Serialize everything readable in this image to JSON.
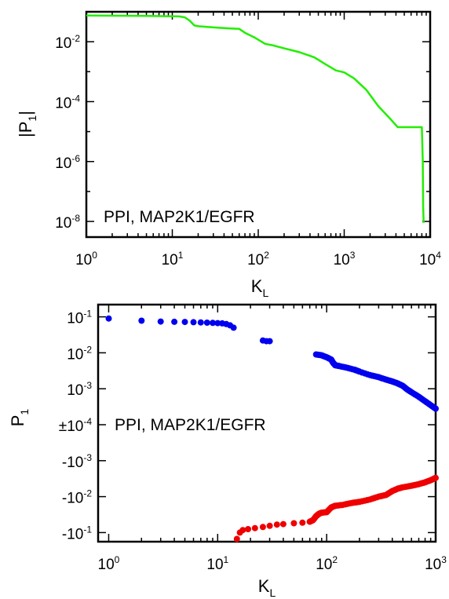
{
  "chart_data": [
    {
      "type": "line",
      "ylabel": "|P1|",
      "xlabel": "KL",
      "xscale": "log",
      "yscale": "log",
      "xlim": [
        1,
        10000
      ],
      "ylim": [
        3e-09,
        0.1
      ],
      "x_ticks": [
        {
          "base": "10",
          "exp": "0"
        },
        {
          "base": "10",
          "exp": "1"
        },
        {
          "base": "10",
          "exp": "2"
        },
        {
          "base": "10",
          "exp": "3"
        },
        {
          "base": "10",
          "exp": "4"
        }
      ],
      "y_ticks": [
        {
          "base": "10",
          "exp": "-2"
        },
        {
          "base": "10",
          "exp": "-4"
        },
        {
          "base": "10",
          "exp": "-6"
        },
        {
          "base": "10",
          "exp": "-8"
        }
      ],
      "annotation": "PPI, MAP2K1/EGFR",
      "grid": false,
      "series": [
        {
          "color": "#22ee00",
          "x": [
            1,
            5,
            12,
            14,
            16,
            18,
            20,
            30,
            45,
            60,
            70,
            90,
            120,
            150,
            200,
            300,
            450,
            600,
            800,
            1000,
            1300,
            1800,
            2500,
            3500,
            4200,
            5000,
            6000,
            7500,
            8000,
            8200,
            8300,
            8400
          ],
          "y": [
            0.075,
            0.073,
            0.07,
            0.065,
            0.05,
            0.035,
            0.033,
            0.03,
            0.028,
            0.027,
            0.02,
            0.014,
            0.0085,
            0.0075,
            0.006,
            0.0045,
            0.003,
            0.0018,
            0.0011,
            0.00095,
            0.0006,
            0.00025,
            7e-05,
            2.5e-05,
            1.4e-05,
            1.4e-05,
            1.4e-05,
            1.4e-05,
            1.4e-05,
            1e-06,
            3e-08,
            9e-09
          ]
        }
      ]
    },
    {
      "type": "scatter",
      "ylabel": "P1",
      "xlabel": "KL",
      "xscale": "log",
      "yscale": "symmetric log",
      "xlim": [
        0.8,
        1000
      ],
      "x_ticks": [
        {
          "base": "10",
          "exp": "0"
        },
        {
          "base": "10",
          "exp": "1"
        },
        {
          "base": "10",
          "exp": "2"
        },
        {
          "base": "10",
          "exp": "3"
        }
      ],
      "y_ticks": [
        {
          "base": "10",
          "exp": "-1"
        },
        {
          "base": "10",
          "exp": "-2"
        },
        {
          "base": "10",
          "exp": "-3"
        },
        {
          "base": "±10",
          "exp": "-4"
        },
        {
          "base": "-10",
          "exp": "-3"
        },
        {
          "base": "-10",
          "exp": "-2"
        },
        {
          "base": "-10",
          "exp": "-1"
        }
      ],
      "annotation": "PPI, MAP2K1/EGFR",
      "grid": false,
      "series": [
        {
          "sign": "positive",
          "color": "#0000ee",
          "points": [
            [
              1,
              0.09
            ],
            [
              2,
              0.078
            ],
            [
              3,
              0.074
            ],
            [
              4,
              0.073
            ],
            [
              5,
              0.072
            ],
            [
              6,
              0.071
            ],
            [
              7,
              0.07
            ],
            [
              8,
              0.069
            ],
            [
              9,
              0.068
            ],
            [
              10,
              0.067
            ],
            [
              11,
              0.066
            ],
            [
              12,
              0.063
            ],
            [
              13,
              0.058
            ],
            [
              14,
              0.05
            ],
            [
              26,
              0.022
            ],
            [
              28,
              0.021
            ],
            [
              30,
              0.021
            ],
            [
              80,
              0.009
            ],
            [
              90,
              0.0085
            ],
            [
              100,
              0.0075
            ],
            [
              110,
              0.0065
            ],
            [
              115,
              0.0052
            ],
            [
              120,
              0.0045
            ],
            [
              130,
              0.0043
            ],
            [
              150,
              0.0039
            ],
            [
              180,
              0.0034
            ],
            [
              200,
              0.003
            ],
            [
              250,
              0.0024
            ],
            [
              300,
              0.0021
            ],
            [
              350,
              0.0018
            ],
            [
              400,
              0.0016
            ],
            [
              450,
              0.0014
            ],
            [
              500,
              0.0012
            ],
            [
              550,
              0.00095
            ],
            [
              600,
              0.0008
            ],
            [
              700,
              0.0006
            ],
            [
              800,
              0.00045
            ],
            [
              900,
              0.00035
            ],
            [
              1000,
              0.00028
            ]
          ]
        },
        {
          "sign": "negative",
          "color": "#ee0000",
          "points": [
            [
              15,
              -0.15
            ],
            [
              16,
              -0.1
            ],
            [
              17,
              -0.085
            ],
            [
              19,
              -0.08
            ],
            [
              22,
              -0.075
            ],
            [
              26,
              -0.07
            ],
            [
              30,
              -0.065
            ],
            [
              35,
              -0.06
            ],
            [
              40,
              -0.058
            ],
            [
              50,
              -0.055
            ],
            [
              60,
              -0.053
            ],
            [
              70,
              -0.05
            ],
            [
              75,
              -0.045
            ],
            [
              80,
              -0.035
            ],
            [
              85,
              -0.03
            ],
            [
              90,
              -0.028
            ],
            [
              100,
              -0.027
            ],
            [
              110,
              -0.02
            ],
            [
              120,
              -0.018
            ],
            [
              140,
              -0.017
            ],
            [
              170,
              -0.015
            ],
            [
              200,
              -0.014
            ],
            [
              250,
              -0.012
            ],
            [
              300,
              -0.01
            ],
            [
              350,
              -0.009
            ],
            [
              400,
              -0.007
            ],
            [
              450,
              -0.006
            ],
            [
              500,
              -0.0055
            ],
            [
              600,
              -0.005
            ],
            [
              700,
              -0.0045
            ],
            [
              800,
              -0.004
            ],
            [
              900,
              -0.0035
            ],
            [
              1000,
              -0.003
            ]
          ]
        }
      ]
    }
  ]
}
